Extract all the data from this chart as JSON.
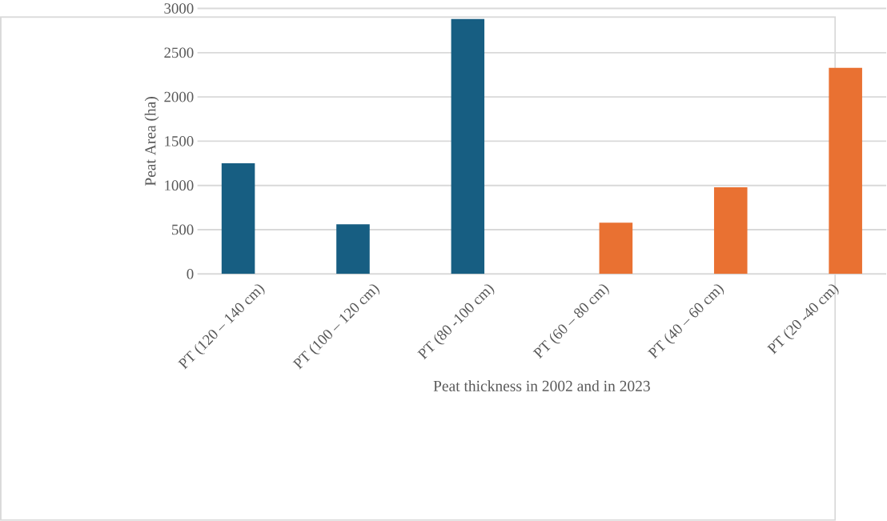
{
  "chart_data": {
    "type": "bar",
    "categories": [
      "PT (120 – 140 cm)",
      "PT (100 – 120 cm)",
      "PT (80 -100 cm)",
      "PT (60 – 80 cm)",
      "PT (40 – 60 cm)",
      "PT (20 -40 cm)"
    ],
    "series": [
      {
        "color": "#175e82",
        "values": [
          1250,
          560,
          2880,
          null,
          null,
          null
        ]
      },
      {
        "color": "#e97132",
        "values": [
          null,
          null,
          null,
          580,
          980,
          2330
        ]
      }
    ],
    "xlabel": "Peat thickness in 2002 and in 2023",
    "ylabel": "Peat Area (ha)",
    "ylim": [
      0,
      3000
    ],
    "yticks": [
      0,
      500,
      1000,
      1500,
      2000,
      2500,
      3000
    ],
    "grid": "y"
  }
}
